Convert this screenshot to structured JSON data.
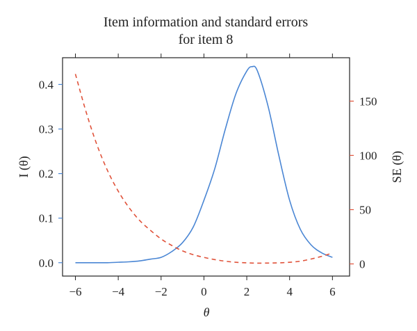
{
  "chart_data": {
    "type": "line",
    "title": "Item information and standard errors",
    "subtitle": "for item 8",
    "xlabel": "θ",
    "ylabel_left": "I (θ)",
    "ylabel_right": "SE (θ)",
    "xlim": [
      -6.6,
      6.8
    ],
    "ylim_left": [
      -0.03,
      0.46
    ],
    "ylim_right": [
      -11.2,
      190
    ],
    "x_ticks": [
      -6,
      -4,
      -2,
      0,
      2,
      4,
      6
    ],
    "x_tick_labels": [
      "−6",
      "−4",
      "−2",
      "0",
      "2",
      "4",
      "6"
    ],
    "y_left_ticks": [
      0.0,
      0.1,
      0.2,
      0.3,
      0.4
    ],
    "y_left_tick_labels": [
      "0.0",
      "0.1",
      "0.2",
      "0.3",
      "0.4"
    ],
    "y_right_ticks": [
      0,
      50,
      100,
      150
    ],
    "y_right_tick_labels": [
      "0",
      "50",
      "100",
      "150"
    ],
    "grid": false,
    "x": [
      -6,
      -5.5,
      -5,
      -4.5,
      -4,
      -3.5,
      -3,
      -2.5,
      -2,
      -1.5,
      -1,
      -0.5,
      0,
      0.5,
      1,
      1.5,
      2,
      2.25,
      2.5,
      3,
      3.5,
      4,
      4.5,
      5,
      5.5,
      6
    ],
    "series": [
      {
        "axis": "left",
        "style": "solid",
        "color": "#4a86d4",
        "values": [
          0.0,
          0.0,
          0.0,
          0.0,
          0.001,
          0.002,
          0.004,
          0.008,
          0.012,
          0.025,
          0.045,
          0.08,
          0.14,
          0.21,
          0.3,
          0.38,
          0.43,
          0.44,
          0.43,
          0.35,
          0.24,
          0.14,
          0.075,
          0.04,
          0.022,
          0.012
        ]
      },
      {
        "axis": "right",
        "style": "dashed",
        "color": "#e0523a",
        "values": [
          175,
          140,
          110,
          86,
          67,
          52,
          40,
          31,
          23,
          17,
          12,
          8.5,
          6,
          4,
          2.5,
          1.5,
          1,
          0.8,
          0.7,
          0.8,
          1,
          1.5,
          2.5,
          4.5,
          7,
          10
        ]
      }
    ]
  }
}
